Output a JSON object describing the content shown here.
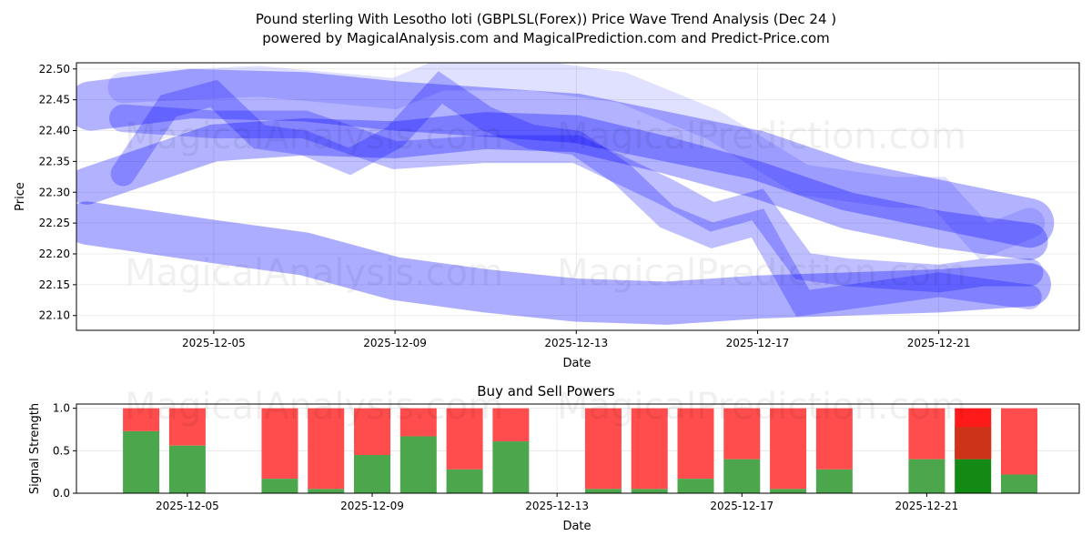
{
  "title_line1": "Pound sterling With Lesotho loti (GBPLSL(Forex)) Price Wave Trend Analysis (Dec 24 )",
  "title_line2": "powered by MagicalAnalysis.com and MagicalPrediction.com and Predict-Price.com",
  "watermarks": [
    "MagicalAnalysis.com",
    "MagicalPrediction.com"
  ],
  "colors": {
    "band": "#0000ff",
    "buy": "#4ca64c",
    "sell": "#ff4c4c",
    "buy_strong": "#138a13",
    "sell_mid": "#cc3318",
    "sell_strong": "#ff1a1a"
  },
  "chart_data": [
    {
      "type": "line",
      "title": "",
      "xlabel": "Date",
      "ylabel": "Price",
      "xlim_day_of_dec": [
        1.97,
        24.1
      ],
      "ylim": [
        22.076,
        22.51
      ],
      "xticks": [
        {
          "day": 5,
          "label": "2025-12-05"
        },
        {
          "day": 9,
          "label": "2025-12-09"
        },
        {
          "day": 13,
          "label": "2025-12-13"
        },
        {
          "day": 17,
          "label": "2025-12-17"
        },
        {
          "day": 21,
          "label": "2025-12-21"
        }
      ],
      "yticks": [
        {
          "v": 22.1,
          "label": "22.10"
        },
        {
          "v": 22.15,
          "label": "22.15"
        },
        {
          "v": 22.2,
          "label": "22.20"
        },
        {
          "v": 22.25,
          "label": "22.25"
        },
        {
          "v": 22.3,
          "label": "22.30"
        },
        {
          "v": 22.35,
          "label": "22.35"
        },
        {
          "v": 22.4,
          "label": "22.40"
        },
        {
          "v": 22.45,
          "label": "22.45"
        },
        {
          "v": 22.5,
          "label": "22.50"
        }
      ],
      "grid": true,
      "series": [
        {
          "name": "wave-lower",
          "band_width": 0.07,
          "opacity": 0.32,
          "x": [
            2.2,
            5,
            7,
            9,
            11,
            13,
            15,
            17,
            19,
            21,
            23
          ],
          "y": [
            22.25,
            22.22,
            22.2,
            22.16,
            22.14,
            22.125,
            22.12,
            22.13,
            22.135,
            22.14,
            22.15
          ]
        },
        {
          "name": "wave-upper",
          "band_width": 0.08,
          "opacity": 0.3,
          "x": [
            2.3,
            4.5,
            7,
            9,
            11,
            13,
            15,
            17,
            19,
            21,
            23
          ],
          "y": [
            22.44,
            22.46,
            22.455,
            22.44,
            22.43,
            22.42,
            22.39,
            22.36,
            22.31,
            22.28,
            22.25
          ]
        },
        {
          "name": "wave-middle",
          "band_width": 0.06,
          "opacity": 0.3,
          "x": [
            2.2,
            5,
            7,
            9,
            11,
            13,
            15,
            17,
            19,
            21,
            23
          ],
          "y": [
            22.31,
            22.38,
            22.39,
            22.385,
            22.4,
            22.395,
            22.36,
            22.32,
            22.27,
            22.24,
            22.22
          ]
        },
        {
          "name": "wave-zigzag",
          "band_width": 0.04,
          "opacity": 0.25,
          "x": [
            3,
            4,
            5,
            6,
            7,
            8,
            9,
            10,
            11,
            12,
            13,
            14,
            15,
            16,
            17,
            18,
            19,
            20,
            21,
            22,
            23
          ],
          "y": [
            22.33,
            22.44,
            22.46,
            22.39,
            22.38,
            22.35,
            22.39,
            22.47,
            22.42,
            22.39,
            22.38,
            22.33,
            22.26,
            22.23,
            22.25,
            22.12,
            22.13,
            22.14,
            22.15,
            22.14,
            22.13
          ]
        },
        {
          "name": "wave-secondary",
          "band_width": 0.045,
          "opacity": 0.25,
          "x": [
            3,
            5,
            7,
            9,
            11,
            13,
            15,
            16,
            17,
            18,
            19,
            21,
            22,
            23
          ],
          "y": [
            22.42,
            22.41,
            22.41,
            22.36,
            22.37,
            22.37,
            22.3,
            22.26,
            22.28,
            22.18,
            22.17,
            22.16,
            22.17,
            22.17
          ]
        },
        {
          "name": "wave-light",
          "band_width": 0.05,
          "opacity": 0.12,
          "x": [
            3,
            6,
            9,
            10,
            12,
            14,
            16,
            18,
            20,
            21,
            22,
            23
          ],
          "y": [
            22.47,
            22.48,
            22.46,
            22.49,
            22.49,
            22.47,
            22.41,
            22.32,
            22.3,
            22.3,
            22.22,
            22.25
          ]
        }
      ]
    },
    {
      "type": "bar",
      "title": "Buy and Sell Powers",
      "xlabel": "Date",
      "ylabel": "Signal Strength",
      "xlim_day_of_dec": [
        2.6,
        24.3
      ],
      "ylim": [
        0,
        1.05
      ],
      "xticks": [
        {
          "day": 5,
          "label": "2025-12-05"
        },
        {
          "day": 9,
          "label": "2025-12-09"
        },
        {
          "day": 13,
          "label": "2025-12-13"
        },
        {
          "day": 17,
          "label": "2025-12-17"
        },
        {
          "day": 21,
          "label": "2025-12-21"
        }
      ],
      "yticks": [
        {
          "v": 0,
          "label": "0.0"
        },
        {
          "v": 0.5,
          "label": "0.5"
        },
        {
          "v": 1,
          "label": "1.0"
        }
      ],
      "days": [
        4,
        5,
        7,
        8,
        9,
        10,
        11,
        12,
        14,
        15,
        16,
        17,
        18,
        19,
        21,
        22,
        23
      ],
      "buy": [
        0.73,
        0.56,
        0.17,
        0.05,
        0.45,
        0.67,
        0.28,
        0.61,
        0.05,
        0.05,
        0.17,
        0.4,
        0.05,
        0.28,
        0.4,
        0.4,
        0.22
      ],
      "sell_mid_top": {
        "day": 22,
        "value": 0.78
      }
    }
  ]
}
